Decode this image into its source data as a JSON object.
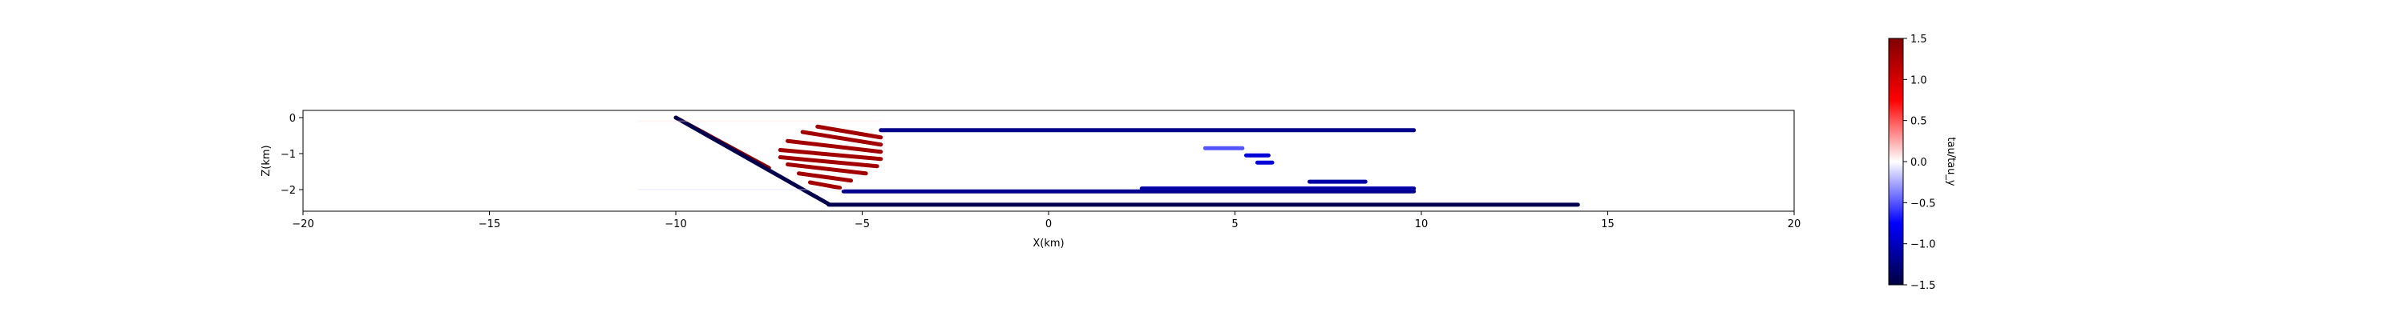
{
  "chart_data": {
    "type": "scatter",
    "title": "",
    "xlabel": "X(km)",
    "ylabel": "Z(km)",
    "xlim": [
      -20,
      20
    ],
    "ylim": [
      -2.6,
      0.2
    ],
    "xticks": [
      -20,
      -15,
      -10,
      -5,
      0,
      5,
      10,
      15,
      20
    ],
    "yticks": [
      0,
      -1,
      -2
    ],
    "grid": false,
    "colormap": "seismic",
    "colorbar": {
      "label": "tau/tau_y",
      "range": [
        -1.5,
        1.5
      ],
      "ticks": [
        1.5,
        1.0,
        0.5,
        0.0,
        -0.5,
        -1.0,
        -1.5
      ],
      "colors": [
        "#000040",
        "#0000ff",
        "#ffffff",
        "#ff0000",
        "#800000"
      ]
    },
    "point_groups": [
      {
        "name": "dipping fault upper segment",
        "from": [
          -10.0,
          0.0
        ],
        "to": [
          -7.5,
          -1.4
        ],
        "value": 1.45
      },
      {
        "name": "dipping fault lower segment",
        "from": [
          -10.0,
          0.0
        ],
        "to": [
          -5.9,
          -2.4
        ],
        "value": -1.45
      },
      {
        "name": "flat basal fault",
        "from": [
          -5.9,
          -2.42
        ],
        "to": [
          14.2,
          -2.42
        ],
        "value": -1.45
      },
      {
        "name": "shallow flat fault",
        "from": [
          -4.5,
          -0.35
        ],
        "to": [
          9.8,
          -0.35
        ],
        "value": -1.2
      },
      {
        "name": "deep flat fault",
        "from": [
          -5.5,
          -2.05
        ],
        "to": [
          9.8,
          -2.05
        ],
        "value": -1.2
      },
      {
        "name": "middle flat fault",
        "from": [
          2.5,
          -1.97
        ],
        "to": [
          9.8,
          -1.97
        ],
        "value": -1.1
      },
      {
        "name": "short fault segment",
        "from": [
          7.0,
          -1.78
        ],
        "to": [
          8.5,
          -1.78
        ],
        "value": -1.1
      },
      {
        "name": "imbricate fault 1",
        "from": [
          -6.2,
          -0.25
        ],
        "to": [
          -4.5,
          -0.55
        ],
        "value": 1.3
      },
      {
        "name": "imbricate fault 2",
        "from": [
          -6.6,
          -0.4
        ],
        "to": [
          -4.5,
          -0.75
        ],
        "value": 1.3
      },
      {
        "name": "imbricate fault 3",
        "from": [
          -7.0,
          -0.65
        ],
        "to": [
          -4.5,
          -0.95
        ],
        "value": 1.3
      },
      {
        "name": "imbricate fault 4",
        "from": [
          -7.2,
          -0.9
        ],
        "to": [
          -4.5,
          -1.15
        ],
        "value": 1.3
      },
      {
        "name": "imbricate fault 5",
        "from": [
          -7.2,
          -1.1
        ],
        "to": [
          -4.6,
          -1.35
        ],
        "value": 1.3
      },
      {
        "name": "imbricate fault 6",
        "from": [
          -7.0,
          -1.3
        ],
        "to": [
          -4.9,
          -1.55
        ],
        "value": 1.3
      },
      {
        "name": "imbricate fault 7",
        "from": [
          -6.7,
          -1.55
        ],
        "to": [
          -5.3,
          -1.75
        ],
        "value": 1.3
      },
      {
        "name": "imbricate fault 8",
        "from": [
          -6.4,
          -1.8
        ],
        "to": [
          -5.6,
          -1.95
        ],
        "value": 1.3
      },
      {
        "name": "faint background trace",
        "from": [
          -11.0,
          -0.1
        ],
        "to": [
          -4.5,
          -0.1
        ],
        "value": 0.1
      },
      {
        "name": "faint background trace",
        "from": [
          -11.0,
          -2.0
        ],
        "to": [
          -5.5,
          -2.0
        ],
        "value": -0.1
      },
      {
        "name": "faint mid patch 1",
        "from": [
          4.2,
          -0.85
        ],
        "to": [
          5.2,
          -0.85
        ],
        "value": -0.5
      },
      {
        "name": "faint mid patch 2",
        "from": [
          5.3,
          -1.05
        ],
        "to": [
          5.9,
          -1.05
        ],
        "value": -0.9
      },
      {
        "name": "faint mid patch 3",
        "from": [
          5.6,
          -1.25
        ],
        "to": [
          6.0,
          -1.25
        ],
        "value": -0.9
      }
    ]
  }
}
